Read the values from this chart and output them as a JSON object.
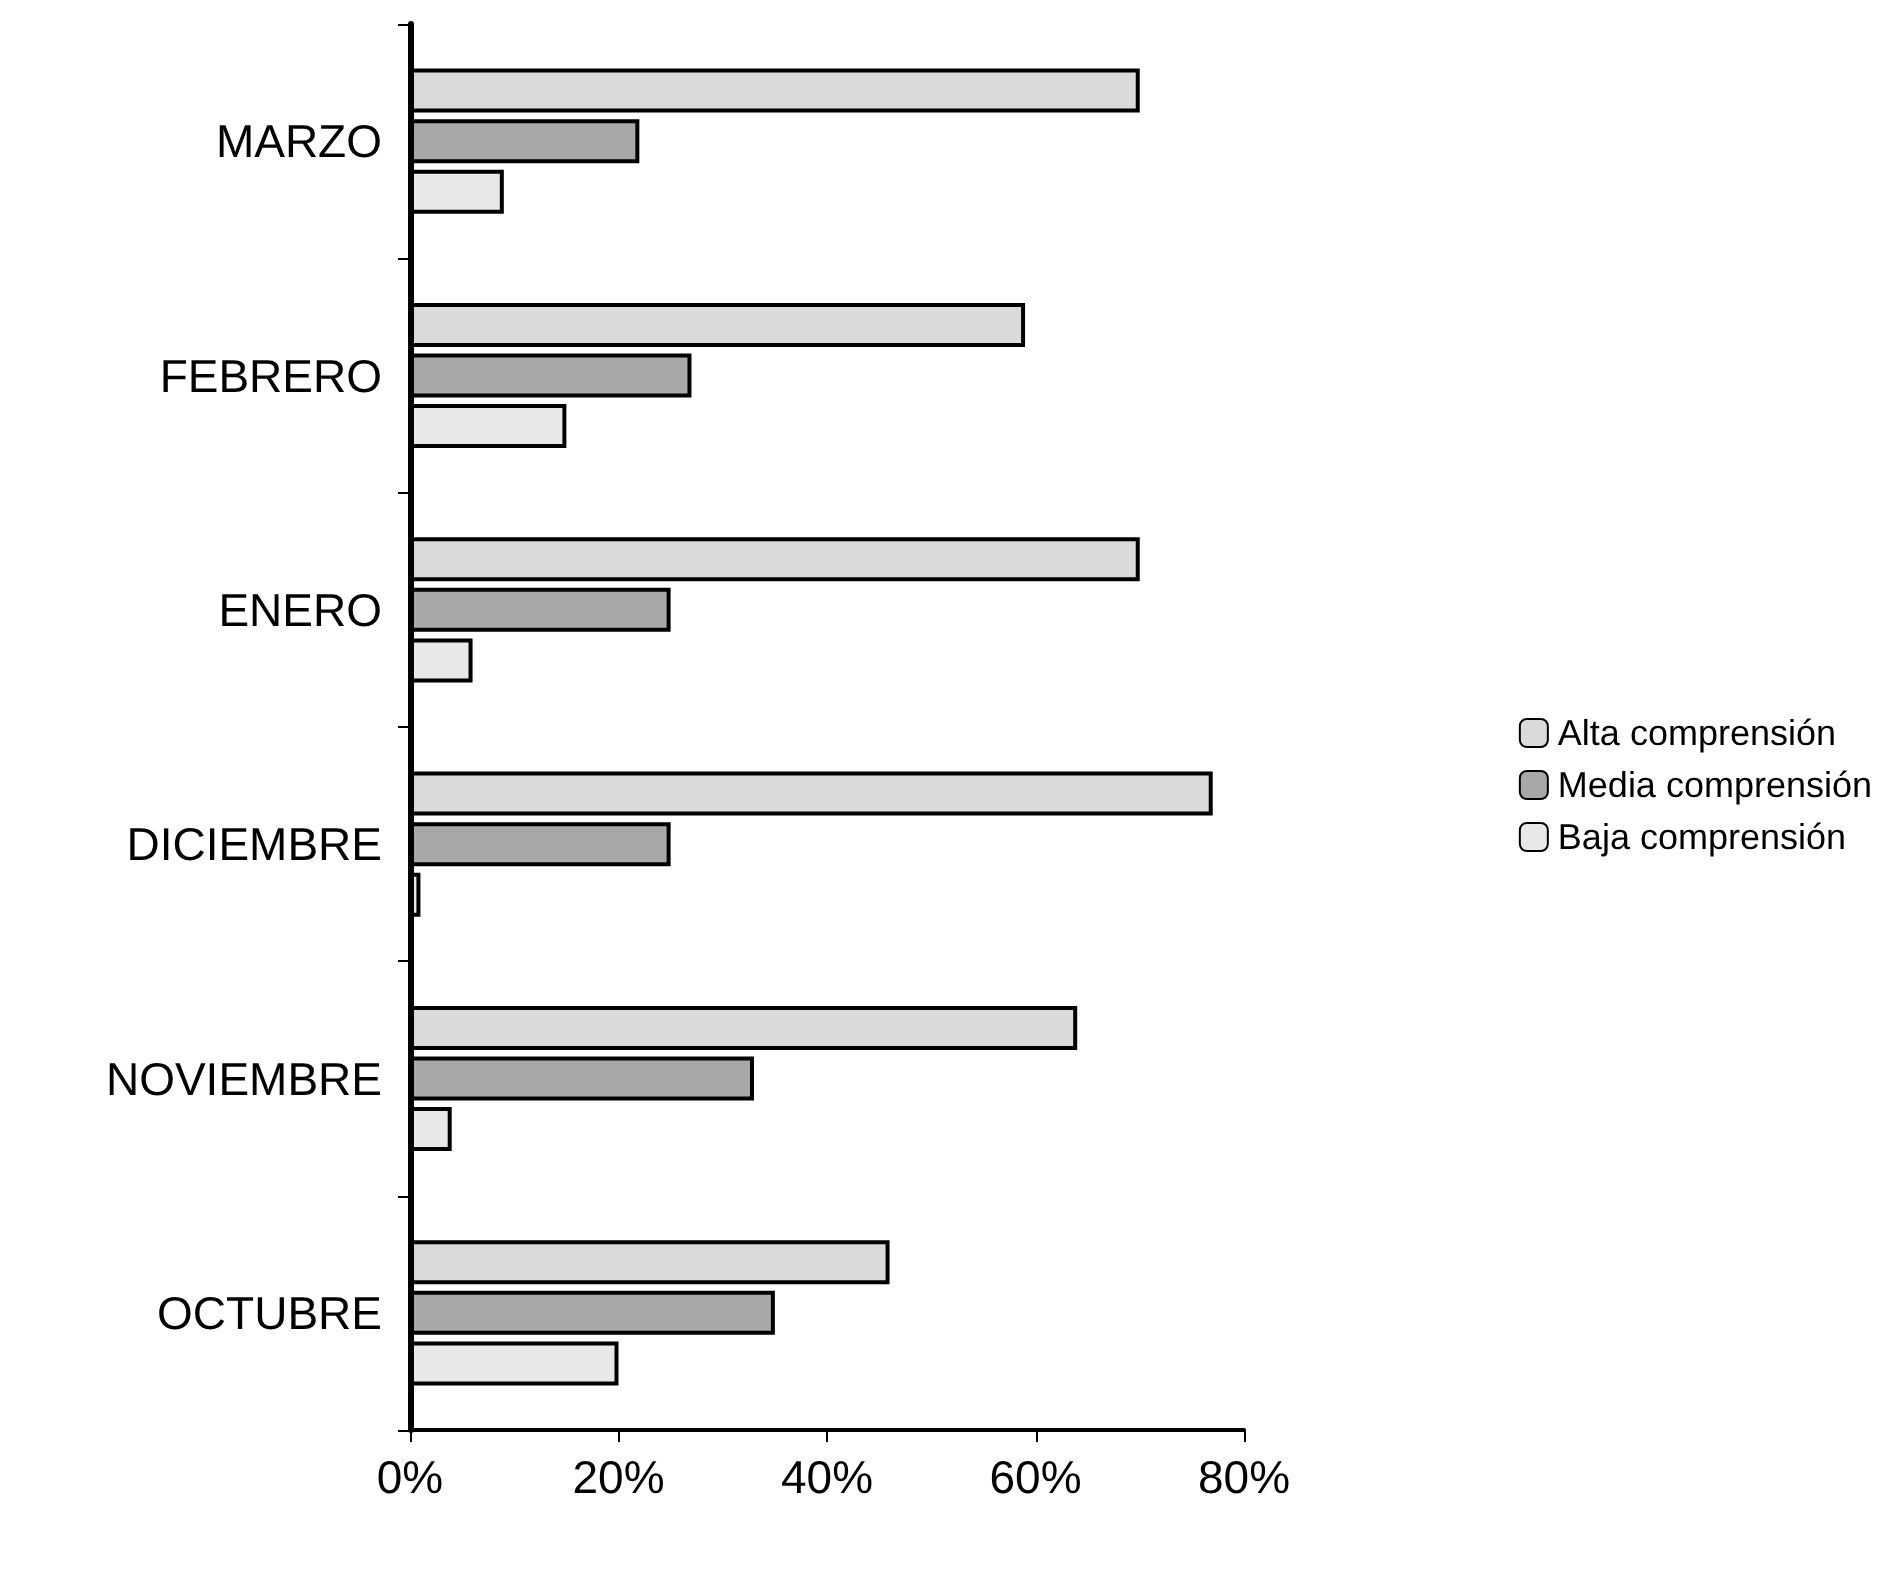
{
  "chart_data": {
    "type": "bar",
    "orientation": "horizontal",
    "categories": [
      "MARZO",
      "FEBRERO",
      "ENERO",
      "DICIEMBRE",
      "NOVIEMBRE",
      "OCTUBRE"
    ],
    "series": [
      {
        "name": "Alta comprensión",
        "color": "#dadada",
        "values": [
          70,
          59,
          70,
          77,
          64,
          46
        ]
      },
      {
        "name": "Media comprensión",
        "color": "#a8a8a8",
        "values": [
          22,
          27,
          25,
          25,
          33,
          35
        ]
      },
      {
        "name": "Baja comprensión",
        "color": "#e8e8e8",
        "values": [
          9,
          15,
          6,
          1,
          4,
          20
        ]
      }
    ],
    "xlim": [
      0,
      80
    ],
    "xticks": [
      {
        "value": 0,
        "label": "0%"
      },
      {
        "value": 20,
        "label": "20%"
      },
      {
        "value": 40,
        "label": "40%"
      },
      {
        "value": 60,
        "label": "60%"
      },
      {
        "value": 80,
        "label": "80%"
      }
    ],
    "grid": false,
    "legend": "right"
  }
}
